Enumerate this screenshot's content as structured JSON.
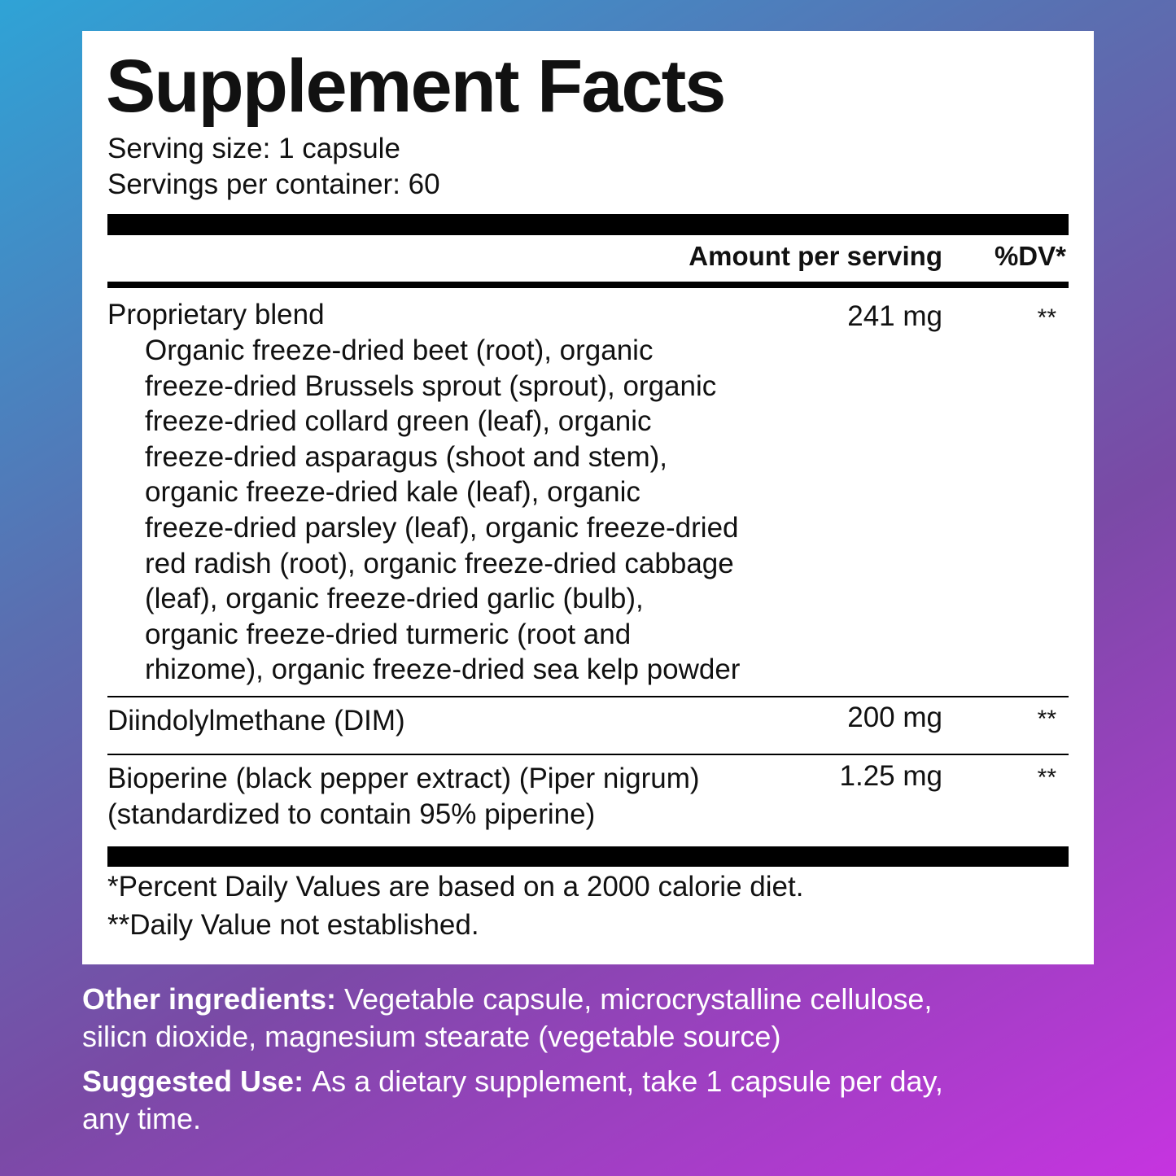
{
  "title": "Supplement Facts",
  "serving_size": "Serving size: 1 capsule",
  "servings_per_container": "Servings per container: 60",
  "header": {
    "amount": "Amount per serving",
    "dv": "%DV*"
  },
  "rows": [
    {
      "name": [
        "Proprietary blend"
      ],
      "ingredients": [
        "Organic freeze-dried beet (root), organic",
        "freeze-dried Brussels sprout (sprout), organic",
        "freeze-dried collard green (leaf), organic",
        "freeze-dried asparagus (shoot and stem),",
        "organic freeze-dried kale (leaf), organic",
        "freeze-dried parsley (leaf), organic freeze-dried",
        "red radish (root), organic freeze-dried cabbage",
        "(leaf), organic freeze-dried garlic (bulb),",
        "organic freeze-dried turmeric (root and",
        "rhizome), organic freeze-dried sea kelp powder"
      ],
      "amount": "241 mg",
      "dv": "**"
    },
    {
      "name": [
        "Diindolylmethane (DIM)"
      ],
      "amount": "200 mg",
      "dv": "**"
    },
    {
      "name": [
        "Bioperine (black pepper extract) (Piper nigrum)",
        "(standardized to contain 95% piperine)"
      ],
      "amount": "1.25 mg",
      "dv": "**"
    }
  ],
  "footnotes": [
    "*Percent Daily Values are based on a 2000 calorie diet.",
    "**Daily Value not established."
  ],
  "other_ingredients": {
    "label": "Other ingredients:",
    "lines": [
      "Vegetable capsule, microcrystalline cellulose,",
      "silicn dioxide, magnesium stearate (vegetable source)"
    ]
  },
  "suggested_use": {
    "label": "Suggested Use:",
    "lines": [
      "As a dietary supplement, take 1 capsule per day,",
      "any time."
    ]
  }
}
